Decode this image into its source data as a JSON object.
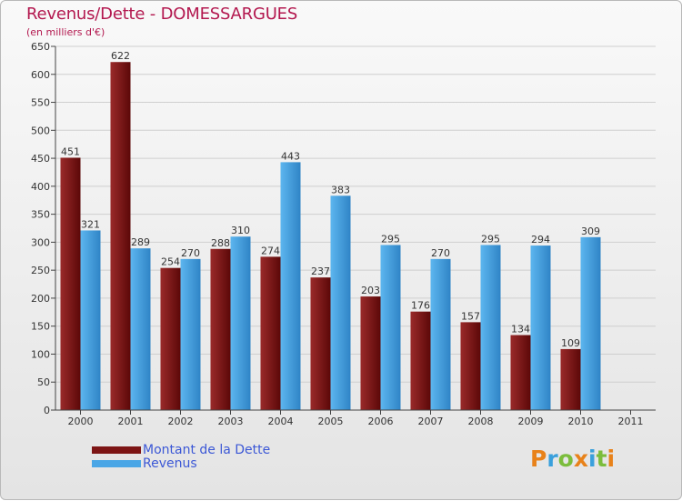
{
  "chart_data": {
    "type": "bar",
    "title": "Revenus/Dette - DOMESSARGUES",
    "subtitle": "(en milliers d'€)",
    "categories": [
      "2000",
      "2001",
      "2002",
      "2003",
      "2004",
      "2005",
      "2006",
      "2007",
      "2008",
      "2009",
      "2010",
      "2011"
    ],
    "series": [
      {
        "name": "Montant de la Dette",
        "color": "#7d1515",
        "values": [
          451,
          622,
          254,
          288,
          274,
          237,
          203,
          176,
          157,
          134,
          109,
          null
        ]
      },
      {
        "name": "Revenus",
        "color": "#4aa6e6",
        "values": [
          321,
          289,
          270,
          310,
          443,
          383,
          295,
          270,
          295,
          294,
          309,
          null
        ]
      }
    ],
    "ylim": [
      0,
      650
    ],
    "yticks": [
      0,
      50,
      100,
      150,
      200,
      250,
      300,
      350,
      400,
      450,
      500,
      550,
      600,
      650
    ],
    "grid": true,
    "legend_position": "bottom-left"
  },
  "logo": {
    "text": "Proxiti",
    "letters": [
      {
        "ch": "P",
        "color": "#e8821a"
      },
      {
        "ch": "r",
        "color": "#3aa0dc"
      },
      {
        "ch": "o",
        "color": "#7bbd3c"
      },
      {
        "ch": "x",
        "color": "#e8821a"
      },
      {
        "ch": "i",
        "color": "#3aa0dc"
      },
      {
        "ch": "t",
        "color": "#7bbd3c"
      },
      {
        "ch": "i",
        "color": "#e8821a"
      }
    ]
  }
}
